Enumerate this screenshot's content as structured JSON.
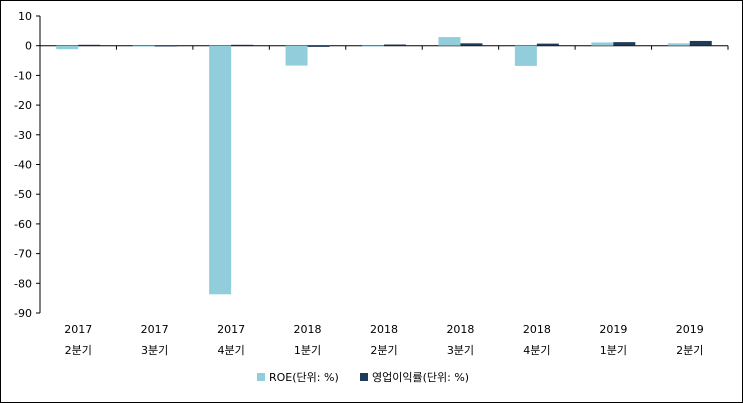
{
  "chart_data": {
    "type": "bar",
    "categories": [
      [
        "2017",
        "2분기"
      ],
      [
        "2017",
        "3분기"
      ],
      [
        "2017",
        "4분기"
      ],
      [
        "2018",
        "1분기"
      ],
      [
        "2018",
        "2분기"
      ],
      [
        "2018",
        "3분기"
      ],
      [
        "2018",
        "4분기"
      ],
      [
        "2019",
        "1분기"
      ],
      [
        "2019",
        "2분기"
      ]
    ],
    "series": [
      {
        "name": "ROE(단위: %)",
        "color": "#92CDDC",
        "values": [
          -1.2,
          -0.3,
          -83.7,
          -6.7,
          -0.3,
          2.9,
          -6.8,
          1.1,
          0.8
        ]
      },
      {
        "name": "영업이익률(단위: %)",
        "color": "#1F3B5A",
        "values": [
          0.3,
          0.0,
          0.3,
          -0.4,
          0.4,
          0.8,
          0.7,
          1.2,
          1.6
        ]
      }
    ],
    "title": "",
    "xlabel": "",
    "ylabel": "",
    "ylim": [
      -90,
      10
    ],
    "yticks": [
      10,
      0,
      -10,
      -20,
      -30,
      -40,
      -50,
      -60,
      -70,
      -80,
      -90
    ],
    "grid": false,
    "legend": "bottom"
  }
}
